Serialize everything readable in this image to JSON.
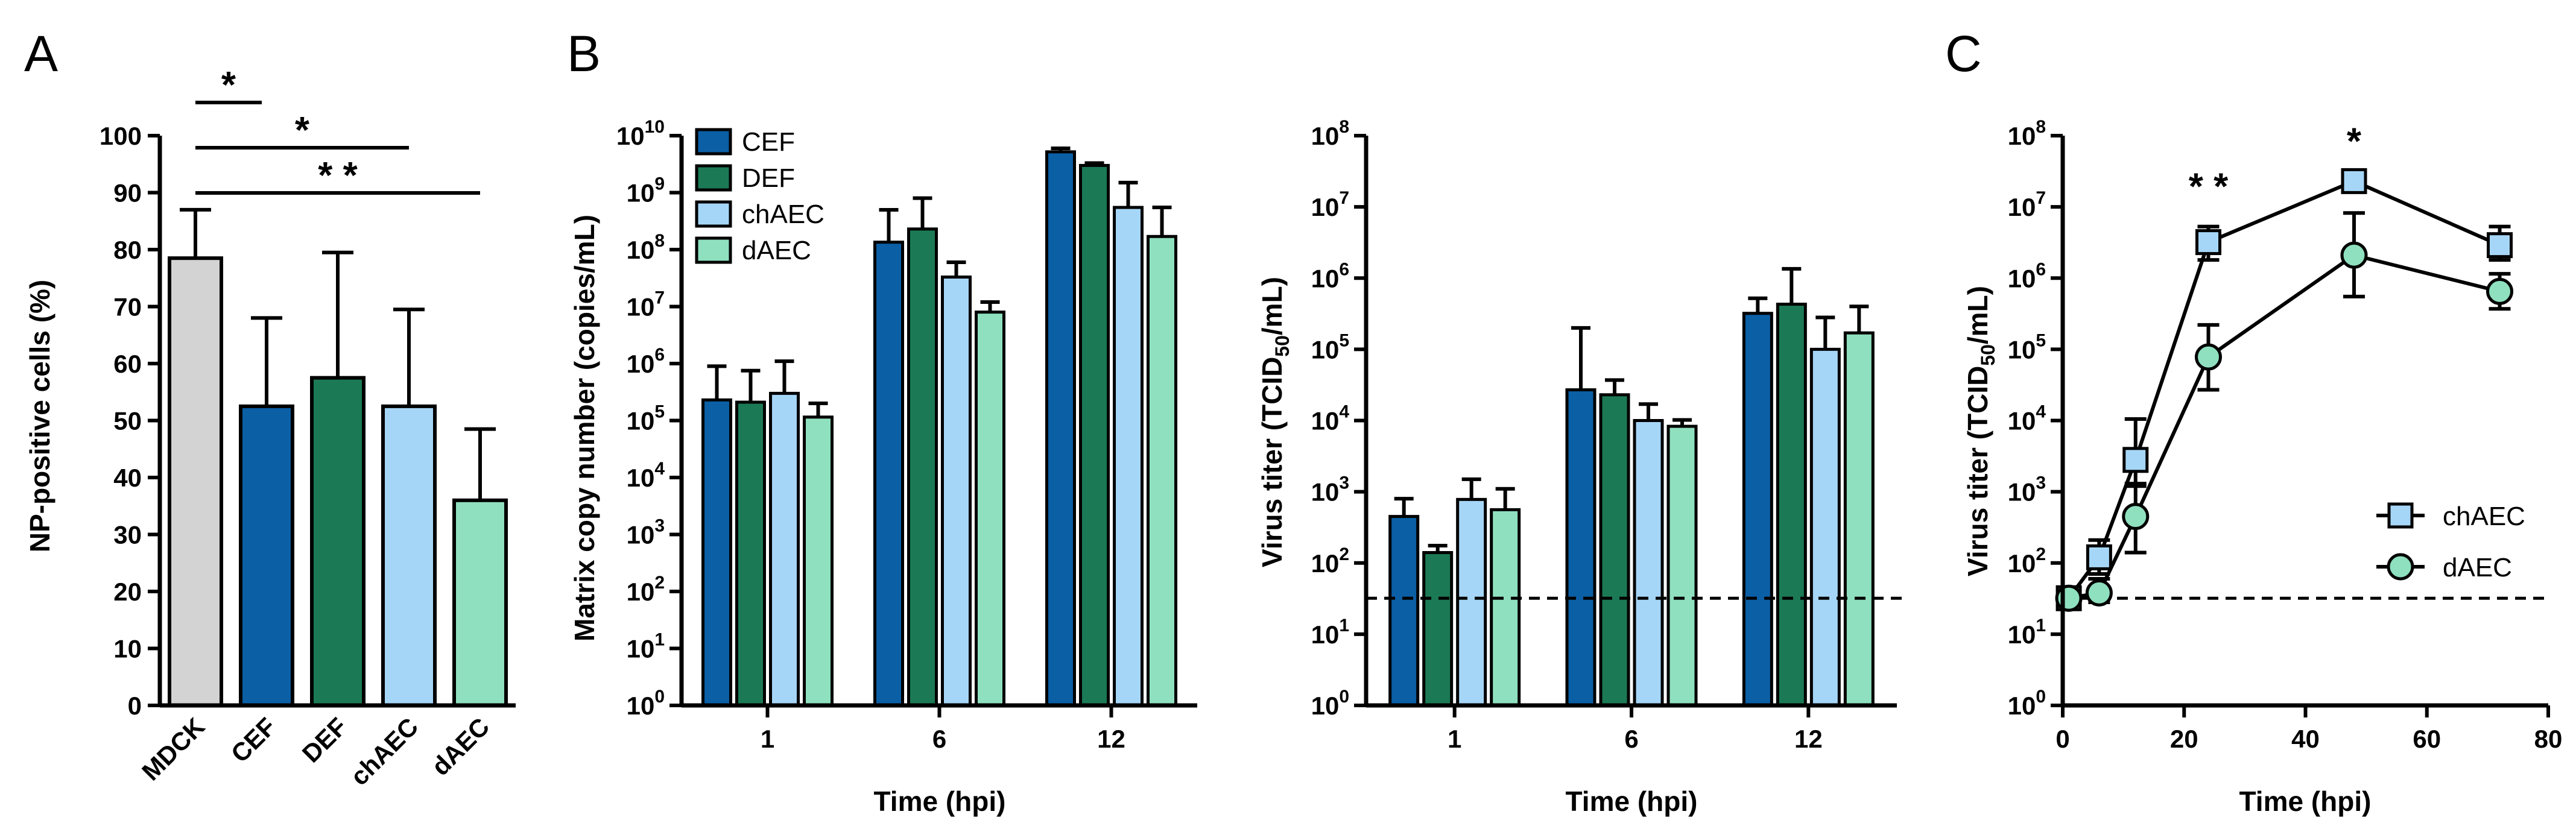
{
  "chart_data": [
    {
      "panel": "A",
      "type": "bar",
      "ylabel": "NP-positive cells (%)",
      "ylim": [
        0,
        100
      ],
      "yticks": [
        0,
        10,
        20,
        30,
        40,
        50,
        60,
        70,
        80,
        90,
        100
      ],
      "categories": [
        "MDCK",
        "CEF",
        "DEF",
        "chAEC",
        "dAEC"
      ],
      "values": [
        78.5,
        52.5,
        57.5,
        52.5,
        36
      ],
      "errors": [
        8.5,
        15.5,
        22,
        17,
        12.5
      ],
      "colors": [
        "#d3d3d3",
        "#0b5fa5",
        "#1b7a55",
        "#a6d6f7",
        "#8fe0bf"
      ],
      "significance": [
        {
          "from": "MDCK",
          "to": "CEF",
          "label": "*"
        },
        {
          "from": "MDCK",
          "to": "chAEC",
          "label": "*"
        },
        {
          "from": "MDCK",
          "to": "dAEC",
          "label": "* *"
        }
      ]
    },
    {
      "panel": "B",
      "type": "bar",
      "yscale": "log",
      "xlabel": "Time (hpi)",
      "ylabel": "Matrix copy number (copies/mL)",
      "ylim_exp": [
        0,
        10
      ],
      "yticks_exp": [
        0,
        1,
        2,
        3,
        4,
        5,
        6,
        7,
        8,
        9,
        10
      ],
      "categories": [
        "1",
        "6",
        "12"
      ],
      "series": [
        {
          "name": "CEF",
          "color": "#0b5fa5",
          "values": [
            230000,
            135000000,
            5200000000
          ],
          "err_upper": [
            900000,
            500000000,
            6000000000
          ]
        },
        {
          "name": "DEF",
          "color": "#1b7a55",
          "values": [
            210000,
            230000000,
            3000000000
          ],
          "err_upper": [
            750000,
            800000000,
            3300000000
          ]
        },
        {
          "name": "chAEC",
          "color": "#a6d6f7",
          "values": [
            300000,
            33000000,
            550000000
          ],
          "err_upper": [
            1100000,
            60000000,
            1500000000
          ]
        },
        {
          "name": "dAEC",
          "color": "#8fe0bf",
          "values": [
            115000,
            8000000,
            170000000
          ],
          "err_upper": [
            200000,
            12000000,
            550000000
          ]
        }
      ]
    },
    {
      "panel": "B2",
      "type": "bar",
      "yscale": "log",
      "xlabel": "Time (hpi)",
      "ylabel": "Virus titer (TCID50/mL)",
      "ylim_exp": [
        0,
        8
      ],
      "yticks_exp": [
        0,
        1,
        2,
        3,
        4,
        5,
        6,
        7,
        8
      ],
      "detection_limit": 32,
      "categories": [
        "1",
        "6",
        "12"
      ],
      "series": [
        {
          "name": "CEF",
          "color": "#0b5fa5",
          "values": [
            450,
            27000,
            320000
          ],
          "err_upper": [
            800,
            200000,
            520000
          ]
        },
        {
          "name": "DEF",
          "color": "#1b7a55",
          "values": [
            140,
            23000,
            430000
          ],
          "err_upper": [
            175,
            37000,
            1350000
          ]
        },
        {
          "name": "chAEC",
          "color": "#a6d6f7",
          "values": [
            780,
            10000,
            100000
          ],
          "err_upper": [
            1500,
            17000,
            280000
          ]
        },
        {
          "name": "dAEC",
          "color": "#8fe0bf",
          "values": [
            560,
            8300,
            170000
          ],
          "err_upper": [
            1100,
            10200,
            400000
          ]
        }
      ]
    },
    {
      "panel": "C",
      "type": "line",
      "yscale": "log",
      "xlabel": "Time (hpi)",
      "ylabel": "Virus titer (TCID50/mL)",
      "xlim": [
        0,
        80
      ],
      "xticks": [
        0,
        20,
        40,
        60,
        80
      ],
      "ylim_exp": [
        0,
        8
      ],
      "yticks_exp": [
        0,
        1,
        2,
        3,
        4,
        5,
        6,
        7,
        8
      ],
      "detection_limit": 32,
      "series": [
        {
          "name": "chAEC",
          "color": "#a6d6f7",
          "marker": "square",
          "x": [
            1,
            6,
            12,
            24,
            48,
            72
          ],
          "y": [
            32,
            120,
            2800,
            3200000,
            23000000,
            2900000
          ],
          "err_lower": [
            28,
            70,
            1300,
            1800000,
            23000000,
            1800000
          ],
          "err_upper": [
            36,
            210,
            10500,
            5300000,
            23000000,
            5300000
          ]
        },
        {
          "name": "dAEC",
          "color": "#8fe0bf",
          "marker": "circle",
          "x": [
            1,
            6,
            12,
            24,
            48,
            72
          ],
          "y": [
            32,
            38,
            450,
            78000,
            2100000,
            650000
          ],
          "err_lower": [
            28,
            28,
            140,
            27000,
            550000,
            370000
          ],
          "err_upper": [
            36,
            60,
            1200,
            220000,
            8200000,
            1150000
          ]
        }
      ],
      "significance": [
        {
          "x": 24,
          "label": "* *"
        },
        {
          "x": 48,
          "label": "*"
        }
      ]
    }
  ],
  "labels": {
    "panel_a": "A",
    "panel_b": "B",
    "panel_c": "C",
    "a_ylabel": "NP-positive cells (%)",
    "b_ylabel_pre": "Matrix copy number (copies/mL)",
    "b_xlabel": "Time (hpi)",
    "b2_ylabel_pre": "Virus titer (TCID",
    "b2_ylabel_sub": "50",
    "b2_ylabel_post": "/mL)",
    "b2_xlabel": "Time (hpi)",
    "c_ylabel_pre": "Virus titer (TCID",
    "c_ylabel_sub": "50",
    "c_ylabel_post": "/mL)",
    "c_xlabel": "Time (hpi)",
    "pow_base": "10"
  }
}
